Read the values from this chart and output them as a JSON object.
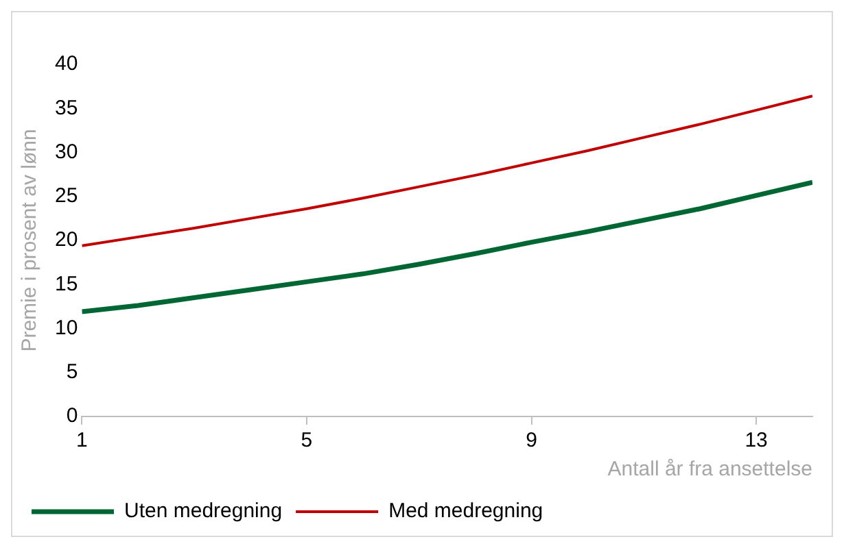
{
  "chart_data": {
    "type": "line",
    "xlabel": "Antall år fra ansettelse",
    "ylabel": "Premie i prosent av lønn",
    "x": [
      1,
      2,
      3,
      4,
      5,
      6,
      7,
      8,
      9,
      10,
      11,
      12,
      13,
      14
    ],
    "series": [
      {
        "name": "Uten medregning",
        "color": "#006633",
        "values": [
          11.9,
          12.6,
          13.5,
          14.4,
          15.3,
          16.2,
          17.3,
          18.5,
          19.8,
          21.0,
          22.3,
          23.6,
          25.1,
          26.6
        ]
      },
      {
        "name": "Med medregning",
        "color": "#c00000",
        "values": [
          19.4,
          20.4,
          21.4,
          22.5,
          23.6,
          24.8,
          26.1,
          27.4,
          28.8,
          30.2,
          31.7,
          33.2,
          34.8,
          36.4
        ]
      }
    ],
    "xlim": [
      1,
      14
    ],
    "xticks": [
      1,
      5,
      9,
      13
    ],
    "ylim": [
      0,
      40
    ],
    "yticks": [
      0,
      5,
      10,
      15,
      20,
      25,
      30,
      35,
      40
    ],
    "grid": false,
    "legend": "bottom",
    "marker": "none",
    "line_style": "solid"
  }
}
